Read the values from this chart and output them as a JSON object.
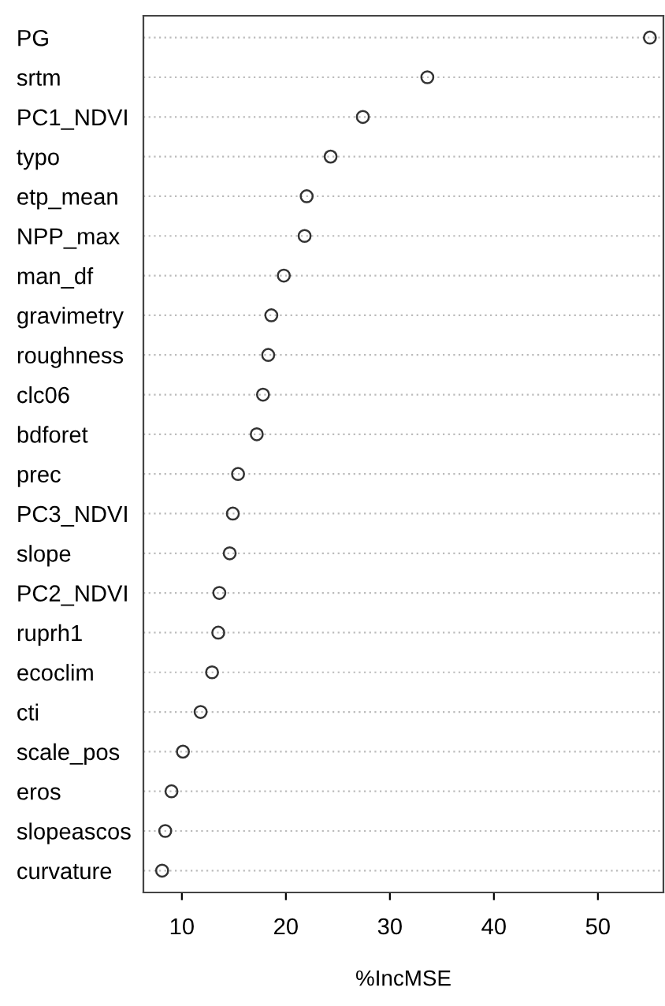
{
  "chart_data": {
    "type": "scatter",
    "orientation": "horizontal",
    "xlabel": "%IncMSE",
    "categories": [
      "PG",
      "srtm",
      "PC1_NDVI",
      "typo",
      "etp_mean",
      "NPP_max",
      "man_df",
      "gravimetry",
      "roughness",
      "clc06",
      "bdforet",
      "prec",
      "PC3_NDVI",
      "slope",
      "PC2_NDVI",
      "ruprh1",
      "ecoclim",
      "cti",
      "scale_pos",
      "eros",
      "slopeascos",
      "curvature"
    ],
    "values": [
      55.0,
      33.6,
      27.4,
      24.3,
      22.0,
      21.8,
      19.8,
      18.6,
      18.3,
      17.8,
      17.2,
      15.4,
      14.9,
      14.6,
      13.6,
      13.5,
      12.9,
      11.8,
      10.1,
      9.0,
      8.4,
      8.1
    ],
    "color": "#333333",
    "marker": "circle",
    "grid": "y",
    "xlim": [
      6.3,
      56.3
    ],
    "xticks": [
      10,
      20,
      30,
      40,
      50
    ]
  }
}
